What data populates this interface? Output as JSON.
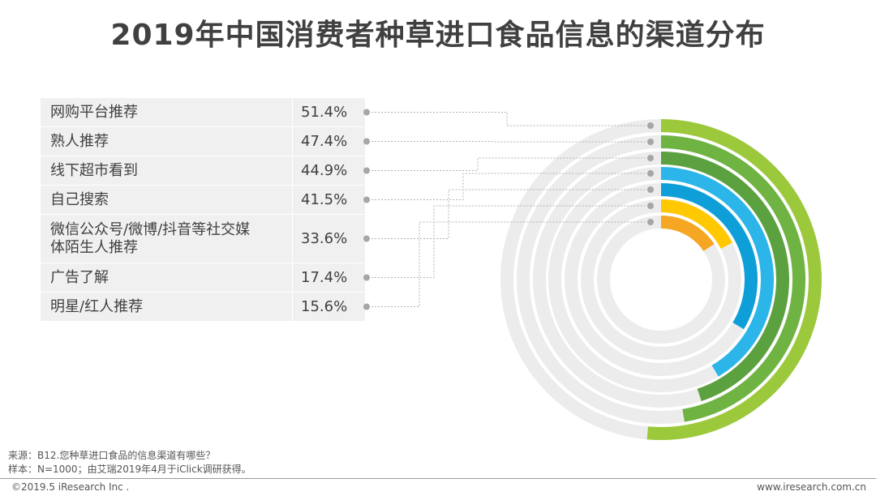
{
  "title": "2019年中国消费者种草进口食品信息的渠道分布",
  "chart_data": {
    "type": "radial_bar",
    "title": "2019年中国消费者种草进口食品信息的渠道分布",
    "categories": [
      "网购平台推荐",
      "熟人推荐",
      "线下超市看到",
      "自己搜索",
      "微信公众号/微博/抖音等社交媒体陌生人推荐",
      "广告了解",
      "明星/红人推荐"
    ],
    "category_lines": [
      [
        "网购平台推荐"
      ],
      [
        "熟人推荐"
      ],
      [
        "线下超市看到"
      ],
      [
        "自己搜索"
      ],
      [
        "微信公众号/微博/抖音等社交媒",
        "体陌生人推荐"
      ],
      [
        "广告了解"
      ],
      [
        "明星/红人推荐"
      ]
    ],
    "values": [
      51.4,
      47.4,
      44.9,
      41.5,
      33.6,
      17.4,
      15.6
    ],
    "value_labels": [
      "51.4%",
      "47.4%",
      "44.9%",
      "41.5%",
      "33.6%",
      "17.4%",
      "15.6%"
    ],
    "unit": "%",
    "full_scale": 100,
    "colors": [
      "#9bc93b",
      "#6fb343",
      "#5ca13f",
      "#2bb5e8",
      "#0e9fd8",
      "#ffc800",
      "#f5a623"
    ],
    "track_color": "#ececec"
  },
  "footnote": {
    "source": "来源：B12.您种草进口食品的信息渠道有哪些？",
    "sample": "样本：N=1000；由艾瑞2019年4月于iClick调研获得。"
  },
  "footer": {
    "copyright": "©2019.5 iResearch Inc .",
    "website": "www.iresearch.com.cn"
  }
}
